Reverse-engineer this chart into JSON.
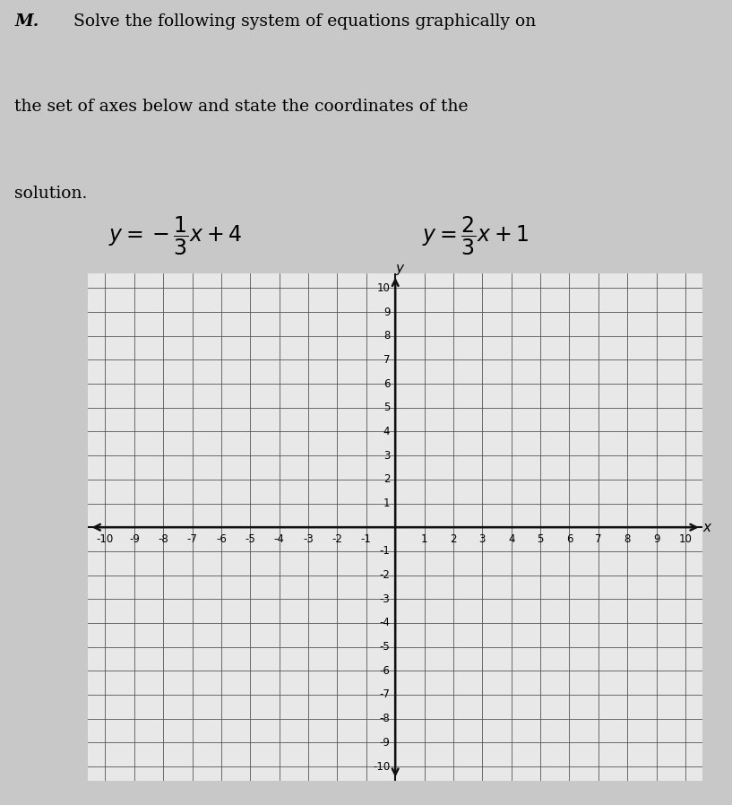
{
  "xmin": -10,
  "xmax": 10,
  "ymin": -10,
  "ymax": 10,
  "grid_color": "#555555",
  "axis_color": "#111111",
  "page_bg": "#c8c8c8",
  "grid_bg": "#e8e8e8",
  "tick_fontsize": 8.5,
  "label_fontsize": 11,
  "text_line1": "Solve the following system of equations graphically on",
  "text_line2": "the set of axes below and state the coordinates of the",
  "text_line3": "solution.",
  "eq1_text": "$y = -\\dfrac{1}{3}x + 4$",
  "eq2_text": "$y = \\dfrac{2}{3}x + 1$",
  "text_fontsize": 13.5,
  "eq_fontsize": 17
}
